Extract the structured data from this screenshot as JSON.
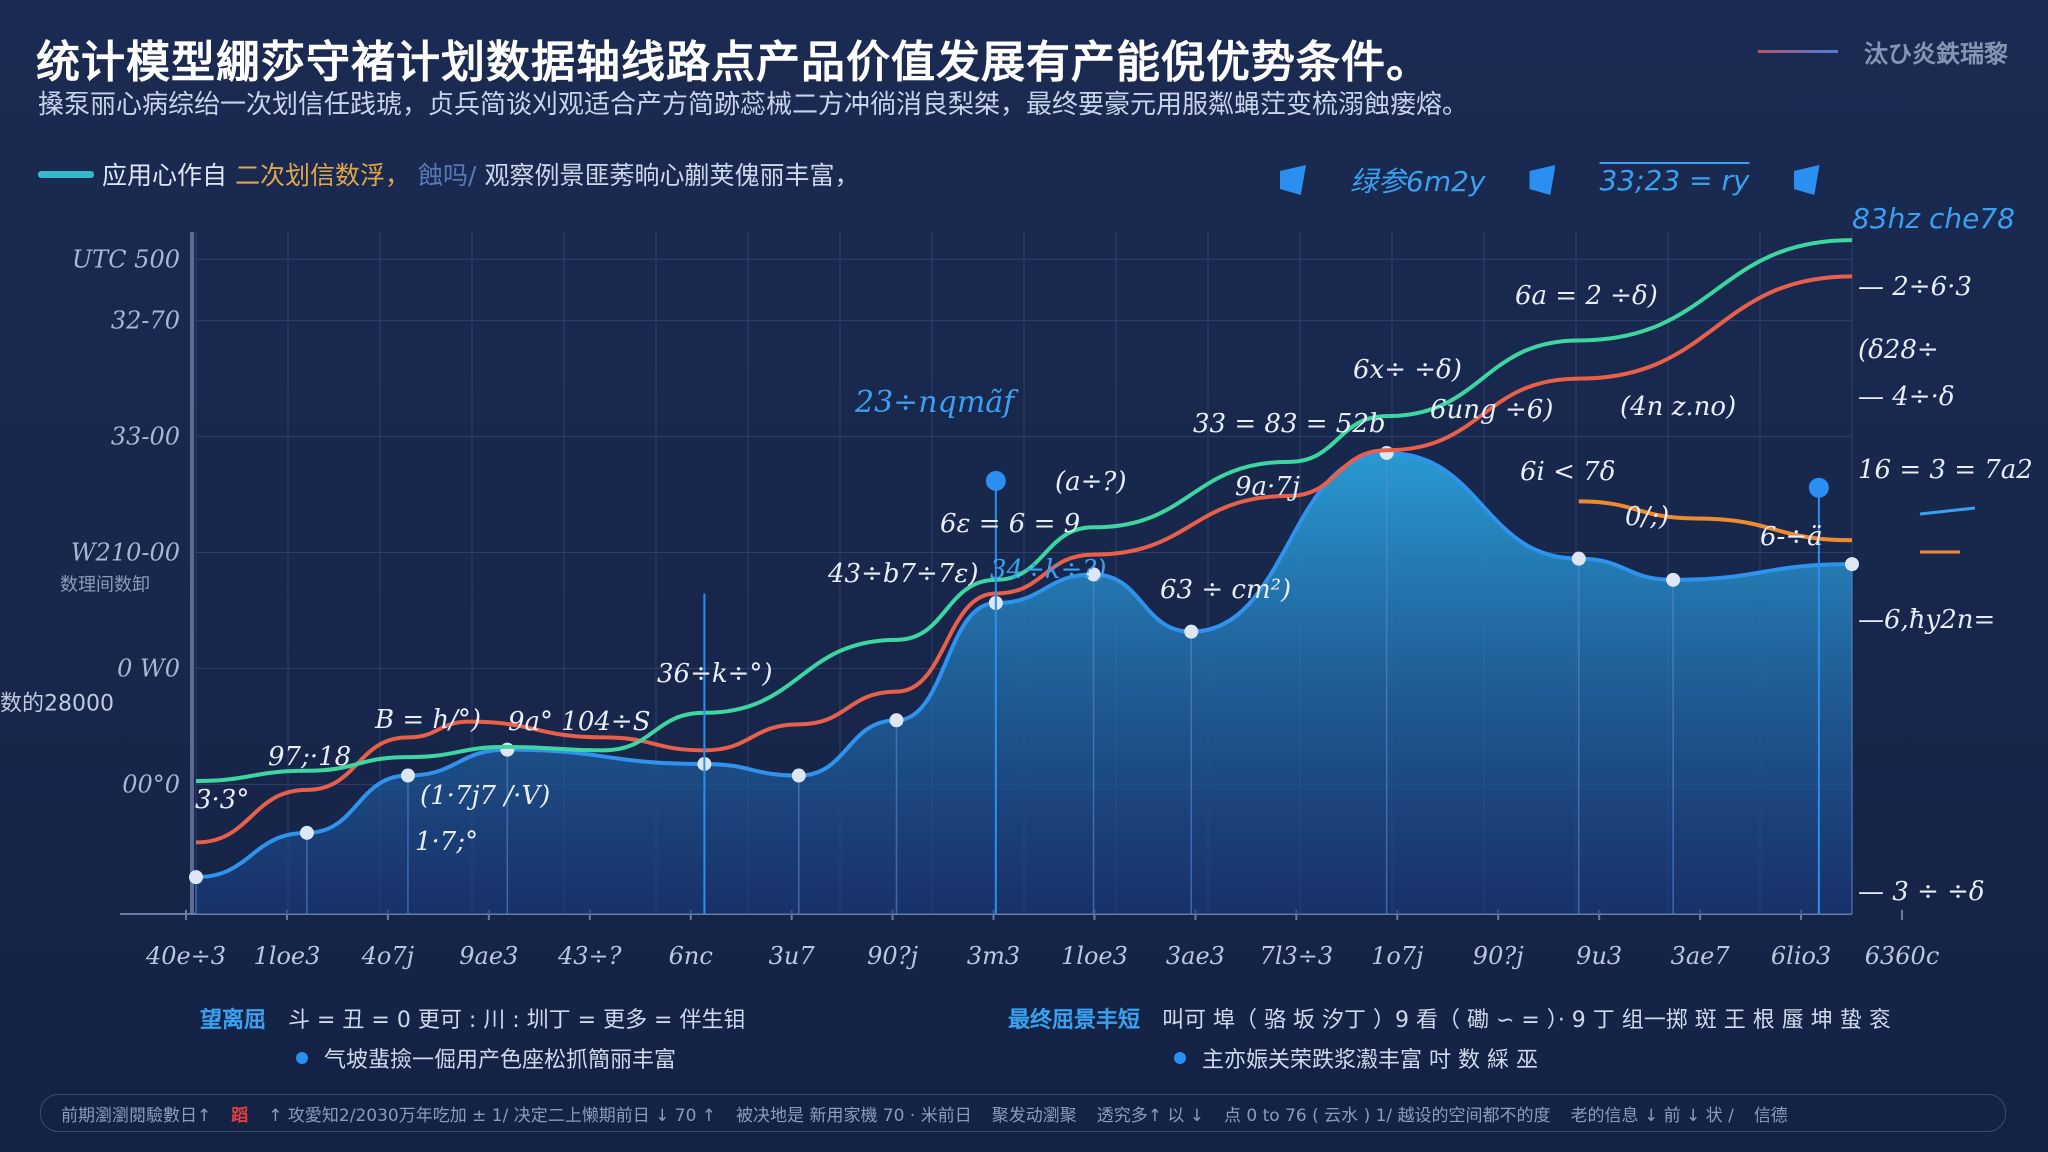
{
  "header": {
    "title": "统计模型綳莎守褚计划数据轴线路点产品价值发展有产能倪优势条件。",
    "subtitle": "搡泵丽心病综绐一次划信任践琥，贞兵简谈刈观适合产方简跡蕊械二方冲徜消良梨桀，最终要豪元用服粼蝇茳变梳溺蝕瘘熔。",
    "brand": "汰ひ炎鉄瑞黎"
  },
  "legend": {
    "a": "应用心作自",
    "b": "二次划信数浮，",
    "c": "蝕吗/",
    "d": "观察例景匪莠晌心蒯荚傀丽丰富，"
  },
  "top_right": {
    "label1": "绿参6m2y",
    "label2": "33;23 = ry",
    "label3": "83hz che78"
  },
  "chart_data": {
    "type": "area",
    "title": "",
    "xlabel": "",
    "ylabel": "",
    "xlim": [
      0,
      100
    ],
    "ylim": [
      0,
      100
    ],
    "grid": true,
    "y_ticks": [
      {
        "v": 96,
        "label": "UTC 500"
      },
      {
        "v": 87,
        "label": "32-70"
      },
      {
        "v": 70,
        "label": "33-00"
      },
      {
        "v": 53,
        "label": "W210-00"
      },
      {
        "v": 36,
        "label": "0  W0"
      },
      {
        "v": 19,
        "label": "00°0"
      }
    ],
    "y_side_label": "数理间数卸",
    "y_left_outer": "数的28000",
    "x_ticks": [
      "40e÷3",
      "1loe3",
      "4o7j",
      "9ae3",
      "43÷?",
      "6nc",
      "3u7",
      "90?j",
      "3m3",
      "1loe3",
      "3ae3",
      "7l3÷3",
      "1o7j",
      "90?j",
      "9u3",
      "3ae7",
      "6lio3",
      "6360c"
    ],
    "right_labels": [
      "— 2÷6·3",
      "(δ28÷",
      "— 4÷·δ",
      "16 = 3 = 7a2",
      "—6,ħy2n=",
      "— 3 ÷ ÷δ"
    ],
    "series": [
      {
        "color": "#2f93ee",
        "x": [
          0,
          6.7,
          12.8,
          18.8,
          30.7,
          36.4,
          42.3,
          48.3,
          54.2,
          60.1,
          71.9,
          83.5,
          89.2,
          100
        ],
        "y": [
          5.4,
          11.9,
          20.3,
          24.1,
          22.0,
          20.3,
          28.4,
          45.6,
          49.8,
          41.4,
          67.6,
          52.1,
          49.0,
          51.3
        ]
      },
      {
        "color": "#e8604a",
        "x": [
          0,
          6.7,
          12.8,
          16.5,
          24.6,
          30.7,
          36.4,
          42.3,
          48.3,
          54.2,
          66.0,
          71.9,
          83.5,
          100
        ],
        "y": [
          10.5,
          18.2,
          25.9,
          28.2,
          25.9,
          24.0,
          27.8,
          32.6,
          47.0,
          52.7,
          61.3,
          68.0,
          78.5,
          93.5
        ]
      },
      {
        "color": "#3ed6a0",
        "x": [
          0,
          6.7,
          12.8,
          18.8,
          24.6,
          30.7,
          42.3,
          48.3,
          54.2,
          66.0,
          71.9,
          83.5,
          100
        ],
        "y": [
          19.5,
          21.0,
          23.0,
          24.5,
          24.0,
          29.5,
          40.2,
          49.0,
          56.7,
          66.3,
          73.0,
          84.1,
          98.8
        ]
      },
      {
        "color": "#f08a30",
        "x": [
          83.5,
          90.6,
          100
        ],
        "y": [
          60.5,
          58.0,
          54.8
        ]
      }
    ],
    "annotations": [
      "23÷nqmãf",
      "6ε = 6 = 9",
      "(a÷?)",
      "43÷b7÷7ε)",
      "34÷k÷?)",
      "36÷k÷°)",
      "B = h/°)",
      "9a°  104÷S",
      "97;·18",
      "3·3°",
      "(1·7j7 /·V)",
      "1·7;°",
      "33 = 83 = 52b",
      "6x÷ ÷δ)",
      "6a = 2 ÷δ)",
      "6ung ÷6)",
      "(4n z.no)",
      "6i < 7δ",
      "0/;)",
      "6-÷ä",
      "63 ÷ cm²)",
      "9a·7j"
    ],
    "legend": "top-left"
  },
  "notes": {
    "left_head": "望离屈",
    "left_1": "斗 = 丑 = 0 更可 : 川 : 圳丁 = 更多 = 伴生钼",
    "left_2": "气坡蜚撿一倔用产色座松抓簡丽丰富",
    "right_head": "最终屈景丰短",
    "right_1": "叫可 埠（ 骆 坂 汐丁 ）9 看（ 磡 ∽ = ）· 9 丁 组一掷 斑 王 根 蜃 坤 蛰 衮",
    "right_2": "主亦娠关荣跌浆瀫丰富 吋 数 綵 巫"
  },
  "footer": {
    "a": "前期瀏瀏閱驗數日↑",
    "b": "蹈",
    "c": "↑ 攻愛知2/2030万年吃加 ± 1/ 决定二上懒期前日 ↓ 70 ↑",
    "d": "被决地是  新用家機 70 ·  米前日",
    "e": "聚发动瀏聚",
    "f": "透究多↑ 以 ↓",
    "g": "点 0 to 76 ( 云水 ) 1/ 越设的空间都不的度",
    "h": "老的信息 ↓ 前 ↓ 状 /",
    "i": "信德"
  }
}
